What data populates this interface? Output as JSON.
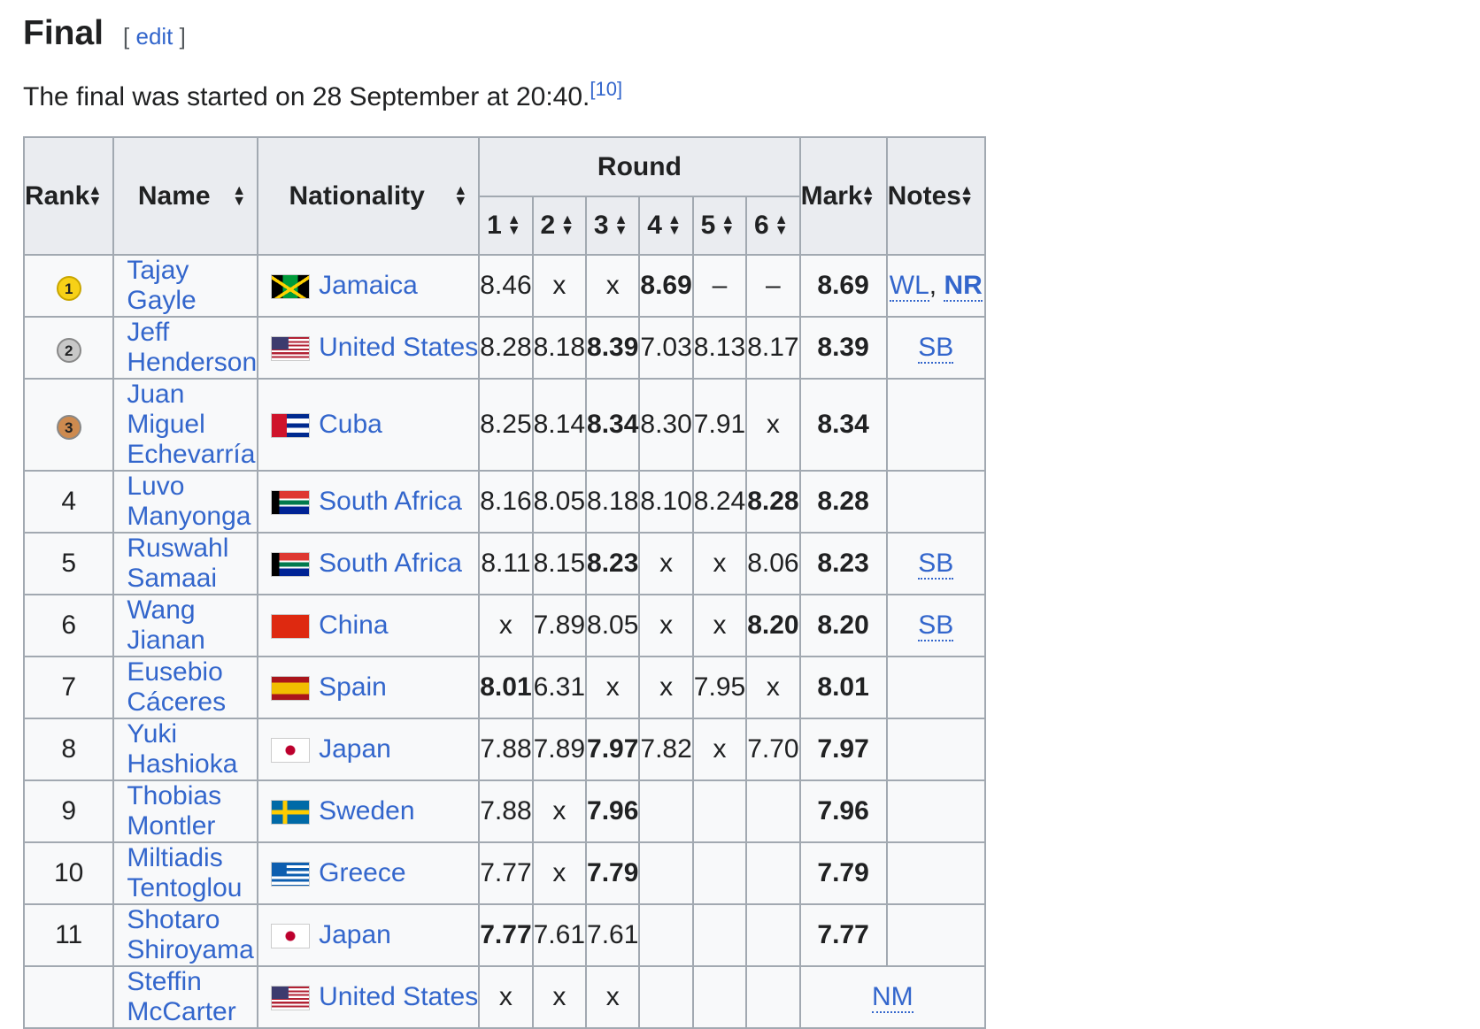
{
  "heading": {
    "title": "Final",
    "edit_open": "[",
    "edit": "edit",
    "edit_close": "]"
  },
  "intro": {
    "text": "The final was started on 28 September at 20:40.",
    "ref": "[10]"
  },
  "columns": {
    "rank": "Rank",
    "name": "Name",
    "nationality": "Nationality",
    "round": "Round",
    "rounds": [
      "1",
      "2",
      "3",
      "4",
      "5",
      "6"
    ],
    "mark": "Mark",
    "notes": "Notes"
  },
  "sort_icon": "sort-up-down-icon",
  "medal_colors": {
    "1": "#f7d117",
    "2": "#c8c8c8",
    "3": "#cd8a4f"
  },
  "rows": [
    {
      "rank": "1",
      "medal": 1,
      "name": "Tajay Gayle",
      "nat": "Jamaica",
      "flag": "jamaica",
      "r": [
        "8.46",
        "x",
        "x",
        "8.69",
        "–",
        "–"
      ],
      "best": 3,
      "mark": "8.69",
      "notes": [
        "WL",
        "NR"
      ]
    },
    {
      "rank": "2",
      "medal": 2,
      "name": "Jeff Henderson",
      "nat": "United States",
      "flag": "usa",
      "r": [
        "8.28",
        "8.18",
        "8.39",
        "7.03",
        "8.13",
        "8.17"
      ],
      "best": 2,
      "mark": "8.39",
      "notes": [
        "SB"
      ]
    },
    {
      "rank": "3",
      "medal": 3,
      "name": "Juan Miguel Echevarría",
      "nat": "Cuba",
      "flag": "cuba",
      "r": [
        "8.25",
        "8.14",
        "8.34",
        "8.30",
        "7.91",
        "x"
      ],
      "best": 2,
      "mark": "8.34",
      "notes": []
    },
    {
      "rank": "4",
      "name": "Luvo Manyonga",
      "nat": "South Africa",
      "flag": "rsa",
      "r": [
        "8.16",
        "8.05",
        "8.18",
        "8.10",
        "8.24",
        "8.28"
      ],
      "best": 5,
      "mark": "8.28",
      "notes": []
    },
    {
      "rank": "5",
      "name": "Ruswahl Samaai",
      "nat": "South Africa",
      "flag": "rsa",
      "r": [
        "8.11",
        "8.15",
        "8.23",
        "x",
        "x",
        "8.06"
      ],
      "best": 2,
      "mark": "8.23",
      "notes": [
        "SB"
      ]
    },
    {
      "rank": "6",
      "name": "Wang Jianan",
      "nat": "China",
      "flag": "china",
      "r": [
        "x",
        "7.89",
        "8.05",
        "x",
        "x",
        "8.20"
      ],
      "best": 5,
      "mark": "8.20",
      "notes": [
        "SB"
      ]
    },
    {
      "rank": "7",
      "name": "Eusebio Cáceres",
      "nat": "Spain",
      "flag": "spain",
      "r": [
        "8.01",
        "6.31",
        "x",
        "x",
        "7.95",
        "x"
      ],
      "best": 0,
      "mark": "8.01",
      "notes": []
    },
    {
      "rank": "8",
      "name": "Yuki Hashioka",
      "nat": "Japan",
      "flag": "japan",
      "r": [
        "7.88",
        "7.89",
        "7.97",
        "7.82",
        "x",
        "7.70"
      ],
      "best": 2,
      "mark": "7.97",
      "notes": []
    },
    {
      "rank": "9",
      "name": "Thobias Montler",
      "nat": "Sweden",
      "flag": "sweden",
      "r": [
        "7.88",
        "x",
        "7.96",
        "",
        "",
        ""
      ],
      "best": 2,
      "mark": "7.96",
      "notes": []
    },
    {
      "rank": "10",
      "name": "Miltiadis Tentoglou",
      "nat": "Greece",
      "flag": "greece",
      "r": [
        "7.77",
        "x",
        "7.79",
        "",
        "",
        ""
      ],
      "best": 2,
      "mark": "7.79",
      "notes": []
    },
    {
      "rank": "11",
      "name": "Shotaro Shiroyama",
      "nat": "Japan",
      "flag": "japan",
      "r": [
        "7.77",
        "7.61",
        "7.61",
        "",
        "",
        ""
      ],
      "best": 0,
      "mark": "7.77",
      "notes": []
    },
    {
      "rank": "",
      "name": "Steffin McCarter",
      "nat": "United States",
      "flag": "usa",
      "r": [
        "x",
        "x",
        "x",
        "",
        "",
        ""
      ],
      "best": -1,
      "mark": "",
      "notes": [],
      "nm": "NM"
    }
  ]
}
